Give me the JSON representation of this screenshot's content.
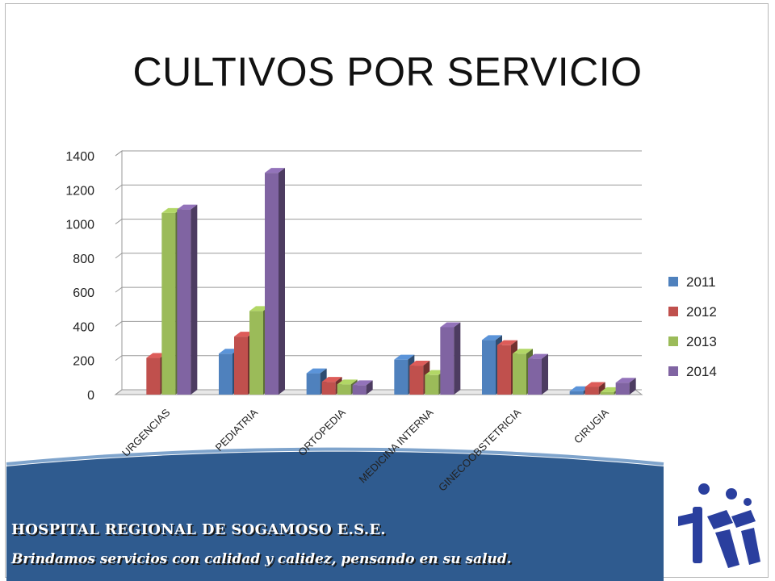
{
  "slide": {
    "title": "CULTIVOS POR SERVICIO"
  },
  "footer": {
    "hospital_name": "HOSPITAL REGIONAL DE SOGAMOSO E.S.E.",
    "slogan": "Brindamos servicios con calidad y calidez, pensando en su salud.",
    "logo_icon": "hospital-logo-icon"
  },
  "colors": {
    "s2011": "#4f81bd",
    "s2012": "#c0504d",
    "s2013": "#9bbb59",
    "s2014": "#8064a2",
    "footer_band": "#2f5b8f",
    "logo": "#2a3f9e"
  },
  "chart_data": {
    "type": "bar",
    "title": "",
    "xlabel": "",
    "ylabel": "",
    "ylim": [
      0,
      1400
    ],
    "yticks": [
      "0",
      "200",
      "400",
      "600",
      "800",
      "1000",
      "1200",
      "1400"
    ],
    "grid": true,
    "legend_position": "right",
    "categories": [
      "URGENCIAS",
      "PEDIATRIA",
      "ORTOPEDIA",
      "MEDICINA INTERNA",
      "GINECOOBSTETRICIA",
      "CIRUGIA"
    ],
    "series": [
      {
        "name": "2011",
        "values": [
          0,
          240,
          125,
          205,
          320,
          20
        ]
      },
      {
        "name": "2012",
        "values": [
          215,
          340,
          75,
          170,
          290,
          45
        ]
      },
      {
        "name": "2013",
        "values": [
          1065,
          490,
          60,
          115,
          240,
          15
        ]
      },
      {
        "name": "2014",
        "values": [
          1085,
          1300,
          55,
          395,
          210,
          70
        ]
      }
    ]
  }
}
